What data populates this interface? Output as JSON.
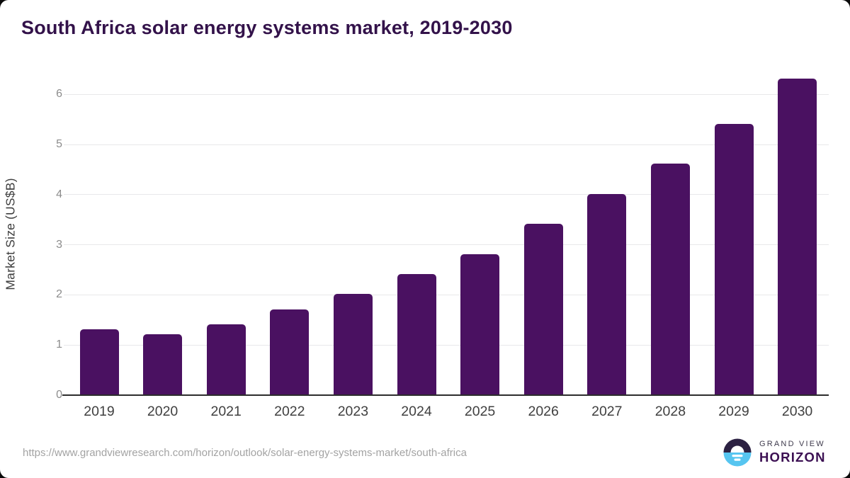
{
  "page": {
    "title": "South Africa solar energy systems market, 2019-2030"
  },
  "chart_data": {
    "type": "bar",
    "title": "South Africa solar energy systems market, 2019-2030",
    "categories": [
      "2019",
      "2020",
      "2021",
      "2022",
      "2023",
      "2024",
      "2025",
      "2026",
      "2027",
      "2028",
      "2029",
      "2030"
    ],
    "values": [
      1.3,
      1.2,
      1.4,
      1.7,
      2.0,
      2.4,
      2.8,
      3.4,
      4.0,
      4.6,
      5.4,
      6.3
    ],
    "xlabel": "",
    "ylabel": "Market Size (US$B)",
    "yticks": [
      0,
      1,
      2,
      3,
      4,
      5,
      6
    ],
    "ylim": [
      0,
      6.47
    ],
    "grid": true,
    "legend": "none",
    "bar_color": "#4a1161",
    "gridline_color": "#e8e8ea",
    "axis_line_color": "#2d2d2d",
    "ytick_color": "#8c8c8c",
    "xtick_color": "#404040"
  },
  "footer": {
    "source_url": "https://www.grandviewresearch.com/horizon/outlook/solar-energy-systems-market/south-africa",
    "logo": {
      "line1": "GRAND VIEW",
      "line2": "HORIZON",
      "icon_top_color": "#2c2142",
      "icon_bottom_color": "#56c5f0"
    }
  }
}
